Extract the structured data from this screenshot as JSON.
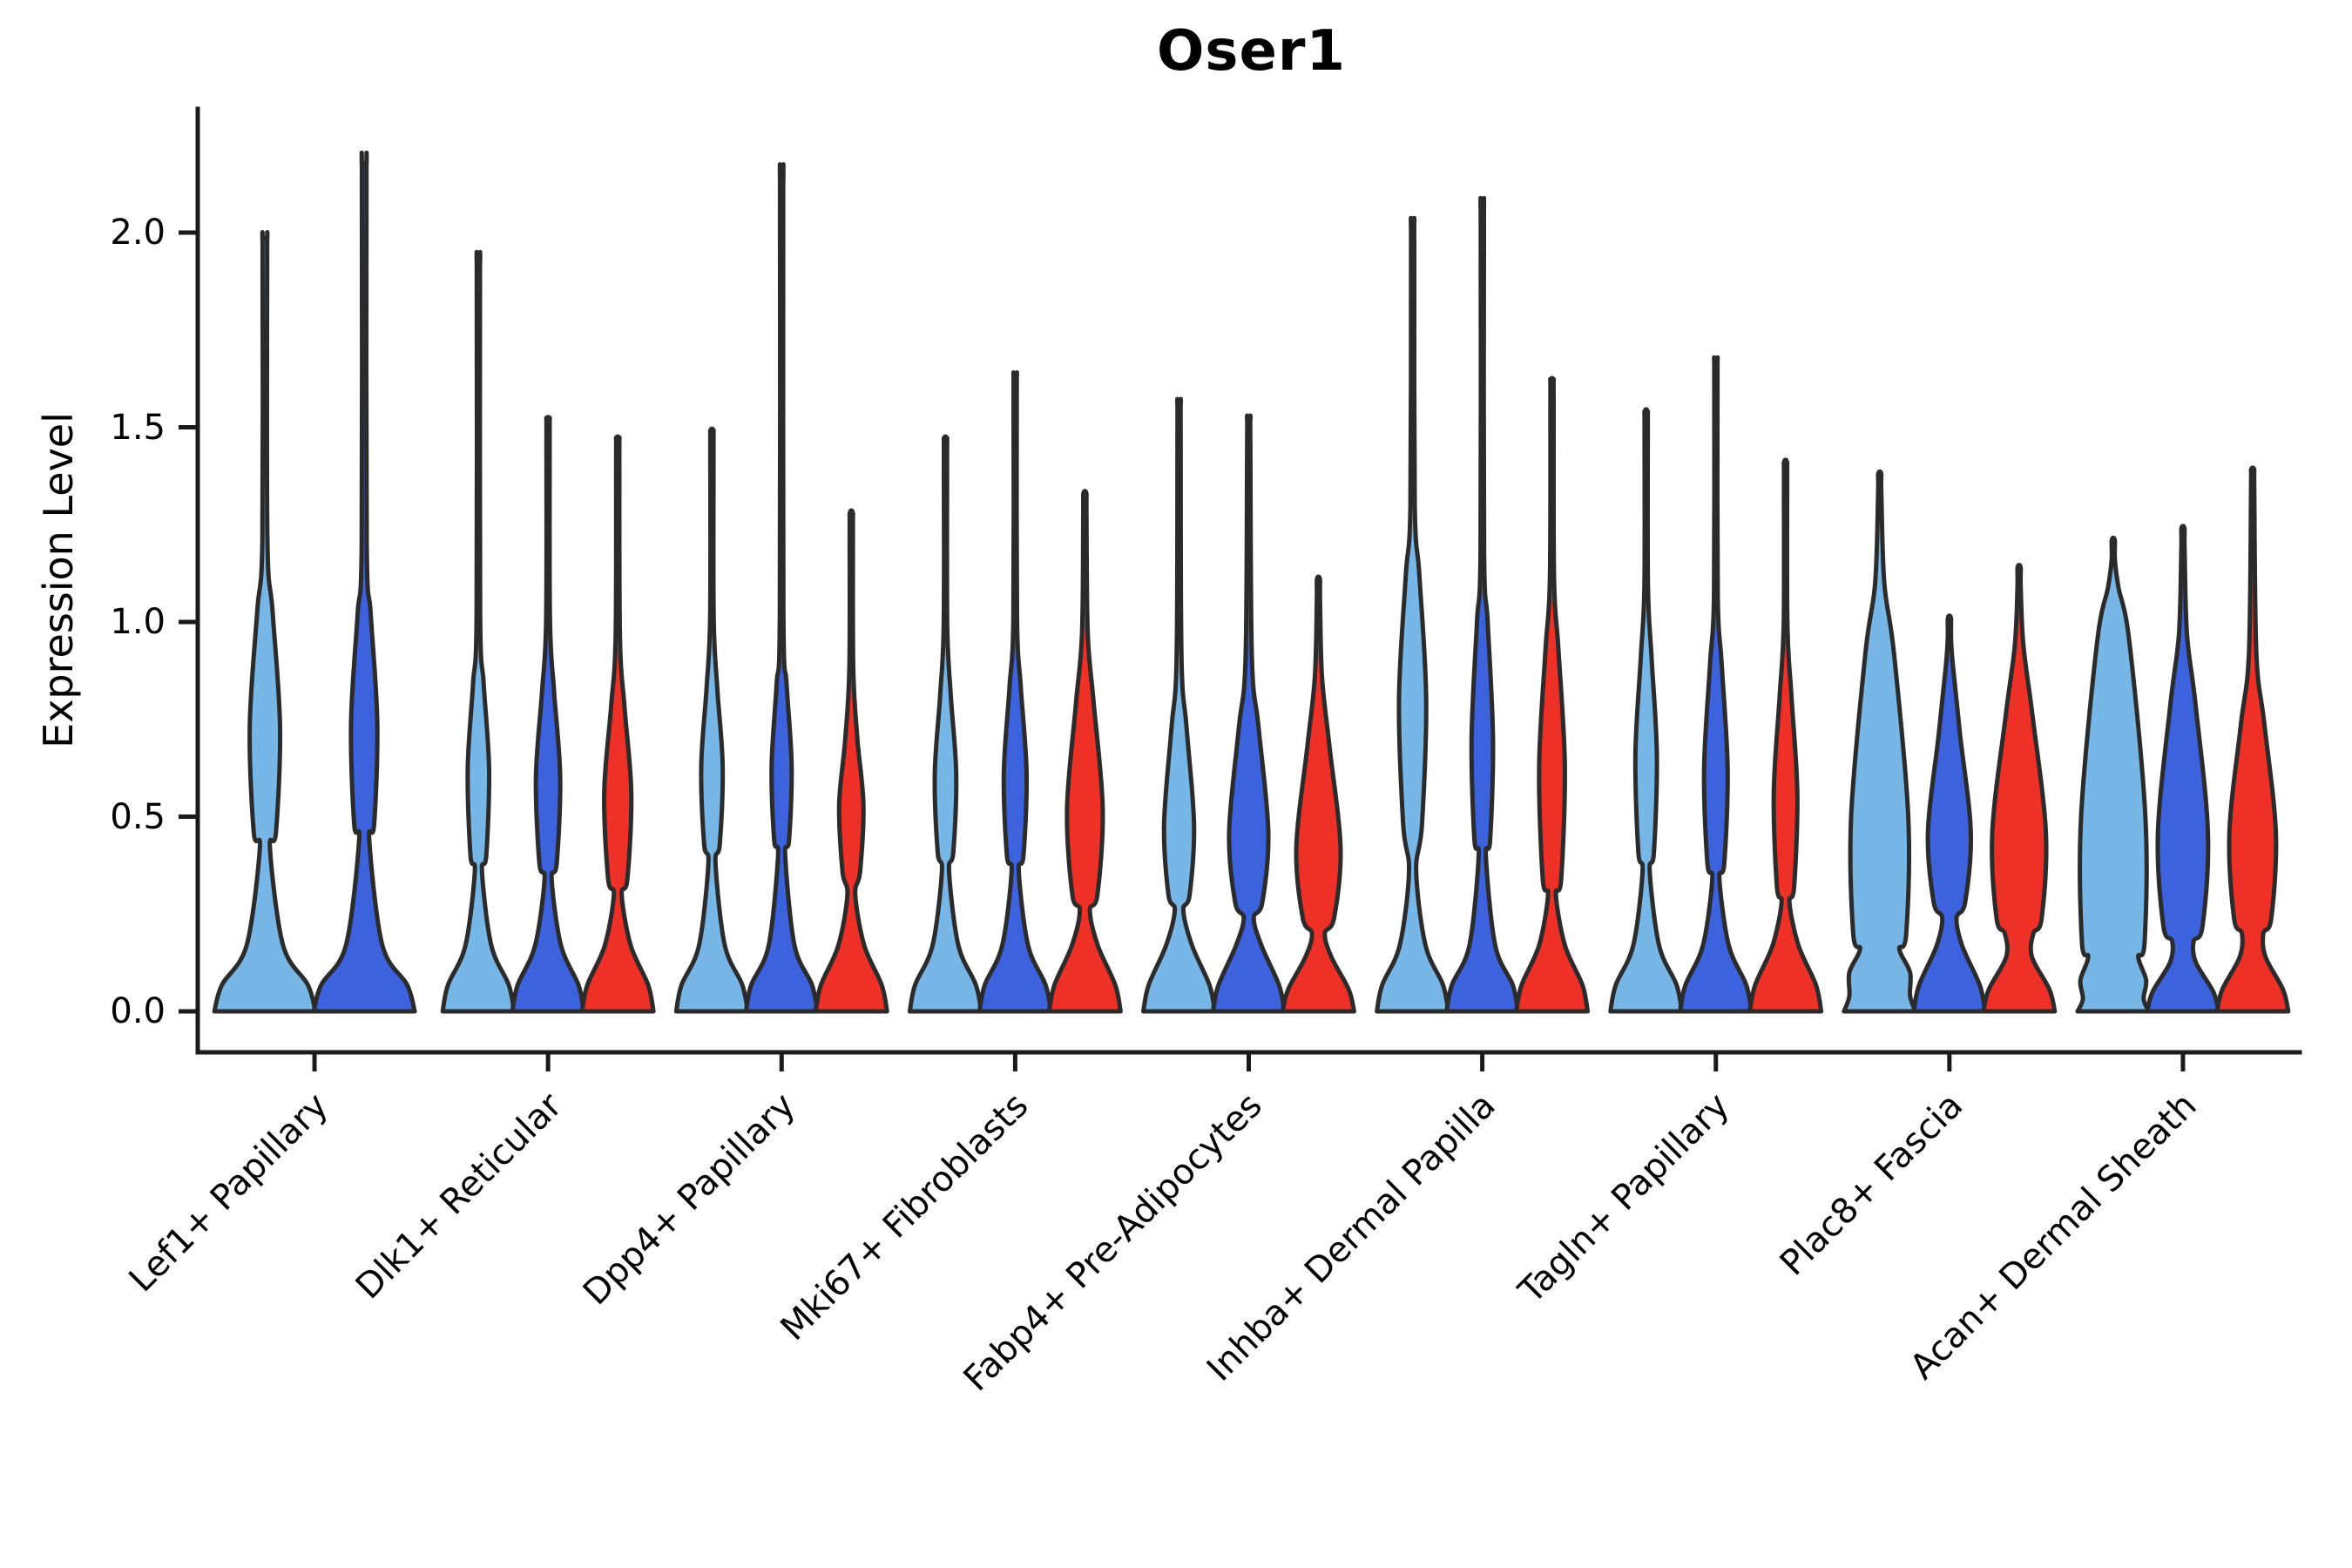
{
  "title": "Oser1",
  "ylabel": "Expression Level",
  "colors": {
    "light_blue": "#76B7E7",
    "blue": "#3D62DE",
    "red": "#EF3027",
    "violin_stroke": "#2B2B2B",
    "axis": "#1A1A1A",
    "text": "#000000",
    "background": "#FFFFFF"
  },
  "chart_data": {
    "type": "violin",
    "title": "Oser1",
    "xlabel": "",
    "ylabel": "Expression Level",
    "ylim": [
      0,
      2.32
    ],
    "yticks": [
      "0.0",
      "0.5",
      "1.0",
      "1.5",
      "2.0"
    ],
    "ytick_values": [
      0.0,
      0.5,
      1.0,
      1.5,
      2.0
    ],
    "grid": false,
    "legend": "none",
    "series_order": [
      "light_blue",
      "blue",
      "red"
    ],
    "categories": [
      "Lef1+ Papillary",
      "Dlk1+ Reticular",
      "Dpp4+ Papillary",
      "Mki67+ Fibroblasts",
      "Fabp4+ Pre-Adipocytes",
      "Inhba+ Dermal Papilla",
      "Tagln+ Papillary",
      "Plac8+ Fascia",
      "Acan+ Dermal Sheath"
    ],
    "groups": [
      {
        "category": "Lef1+ Papillary",
        "violins": [
          {
            "series": "light_blue",
            "max": 1.98,
            "belly_center": 0.73,
            "belly_span": 0.3,
            "belly_width": 0.3,
            "waist_value": 0.42,
            "waist_width": 0.1
          },
          {
            "series": "blue",
            "max": 2.17,
            "belly_center": 0.74,
            "belly_span": 0.28,
            "belly_width": 0.26,
            "waist_value": 0.44,
            "waist_width": 0.1
          }
        ]
      },
      {
        "category": "Dlk1+ Reticular",
        "violins": [
          {
            "series": "light_blue",
            "max": 1.92,
            "belly_center": 0.62,
            "belly_span": 0.22,
            "belly_width": 0.3,
            "waist_value": 0.36,
            "waist_width": 0.1
          },
          {
            "series": "blue",
            "max": 1.52,
            "belly_center": 0.6,
            "belly_span": 0.22,
            "belly_width": 0.34,
            "waist_value": 0.34,
            "waist_width": 0.1
          },
          {
            "series": "red",
            "max": 1.47,
            "belly_center": 0.56,
            "belly_span": 0.22,
            "belly_width": 0.38,
            "waist_value": 0.3,
            "waist_width": 0.11
          }
        ]
      },
      {
        "category": "Dpp4+ Papillary",
        "violins": [
          {
            "series": "light_blue",
            "max": 1.49,
            "belly_center": 0.63,
            "belly_span": 0.2,
            "belly_width": 0.3,
            "waist_value": 0.38,
            "waist_width": 0.1
          },
          {
            "series": "blue",
            "max": 2.13,
            "belly_center": 0.63,
            "belly_span": 0.21,
            "belly_width": 0.28,
            "waist_value": 0.4,
            "waist_width": 0.1
          },
          {
            "series": "red",
            "max": 1.28,
            "belly_center": 0.53,
            "belly_span": 0.17,
            "belly_width": 0.34,
            "waist_value": 0.3,
            "waist_width": 0.11
          }
        ]
      },
      {
        "category": "Mki67+ Fibroblasts",
        "violins": [
          {
            "series": "light_blue",
            "max": 1.47,
            "belly_center": 0.61,
            "belly_span": 0.2,
            "belly_width": 0.3,
            "waist_value": 0.36,
            "waist_width": 0.1
          },
          {
            "series": "blue",
            "max": 1.63,
            "belly_center": 0.61,
            "belly_span": 0.22,
            "belly_width": 0.32,
            "waist_value": 0.36,
            "waist_width": 0.1
          },
          {
            "series": "red",
            "max": 1.33,
            "belly_center": 0.52,
            "belly_span": 0.27,
            "belly_width": 0.5,
            "waist_value": 0.26,
            "waist_width": 0.14
          }
        ]
      },
      {
        "category": "Fabp4+ Pre-Adipocytes",
        "violins": [
          {
            "series": "light_blue",
            "max": 1.56,
            "belly_center": 0.48,
            "belly_span": 0.25,
            "belly_width": 0.42,
            "waist_value": 0.26,
            "waist_width": 0.12
          },
          {
            "series": "blue",
            "max": 1.52,
            "belly_center": 0.46,
            "belly_span": 0.27,
            "belly_width": 0.55,
            "waist_value": 0.24,
            "waist_width": 0.14
          },
          {
            "series": "red",
            "max": 1.11,
            "belly_center": 0.42,
            "belly_span": 0.26,
            "belly_width": 0.62,
            "waist_value": 0.2,
            "waist_width": 0.18
          }
        ]
      },
      {
        "category": "Inhba+ Dermal Papilla",
        "violins": [
          {
            "series": "light_blue",
            "max": 2.02,
            "belly_center": 0.8,
            "belly_span": 0.32,
            "belly_width": 0.38,
            "waist_value": 0.36,
            "waist_width": 0.1
          },
          {
            "series": "blue",
            "max": 2.06,
            "belly_center": 0.7,
            "belly_span": 0.3,
            "belly_width": 0.3,
            "waist_value": 0.4,
            "waist_width": 0.1
          },
          {
            "series": "red",
            "max": 1.62,
            "belly_center": 0.63,
            "belly_span": 0.3,
            "belly_width": 0.36,
            "waist_value": 0.3,
            "waist_width": 0.11
          }
        ]
      },
      {
        "category": "Tagln+ Papillary",
        "violins": [
          {
            "series": "light_blue",
            "max": 1.54,
            "belly_center": 0.66,
            "belly_span": 0.25,
            "belly_width": 0.3,
            "waist_value": 0.36,
            "waist_width": 0.1
          },
          {
            "series": "blue",
            "max": 1.67,
            "belly_center": 0.62,
            "belly_span": 0.27,
            "belly_width": 0.33,
            "waist_value": 0.34,
            "waist_width": 0.1
          },
          {
            "series": "red",
            "max": 1.41,
            "belly_center": 0.56,
            "belly_span": 0.25,
            "belly_width": 0.33,
            "waist_value": 0.28,
            "waist_width": 0.11
          }
        ]
      },
      {
        "category": "Plac8+ Fascia",
        "violins": [
          {
            "series": "light_blue",
            "max": 1.38,
            "belly_center": 0.5,
            "belly_span": 0.42,
            "belly_width": 0.8,
            "waist_value": 0.16,
            "waist_width": 0.55,
            "base_top": 0.1,
            "base_width": 0.85
          },
          {
            "series": "blue",
            "max": 1.01,
            "belly_center": 0.46,
            "belly_span": 0.25,
            "belly_width": 0.6,
            "waist_value": 0.24,
            "waist_width": 0.2
          },
          {
            "series": "red",
            "max": 1.14,
            "belly_center": 0.46,
            "belly_span": 0.3,
            "belly_width": 0.75,
            "waist_value": 0.2,
            "waist_width": 0.4
          }
        ]
      },
      {
        "category": "Acan+ Dermal Sheath",
        "violins": [
          {
            "series": "light_blue",
            "max": 1.21,
            "belly_center": 0.5,
            "belly_span": 0.45,
            "belly_width": 0.9,
            "waist_value": 0.14,
            "waist_width": 0.7,
            "base_top": 0.08,
            "base_width": 0.92
          },
          {
            "series": "blue",
            "max": 1.24,
            "belly_center": 0.46,
            "belly_span": 0.33,
            "belly_width": 0.7,
            "waist_value": 0.18,
            "waist_width": 0.3
          },
          {
            "series": "red",
            "max": 1.39,
            "belly_center": 0.46,
            "belly_span": 0.28,
            "belly_width": 0.65,
            "waist_value": 0.2,
            "waist_width": 0.3
          }
        ]
      }
    ]
  }
}
